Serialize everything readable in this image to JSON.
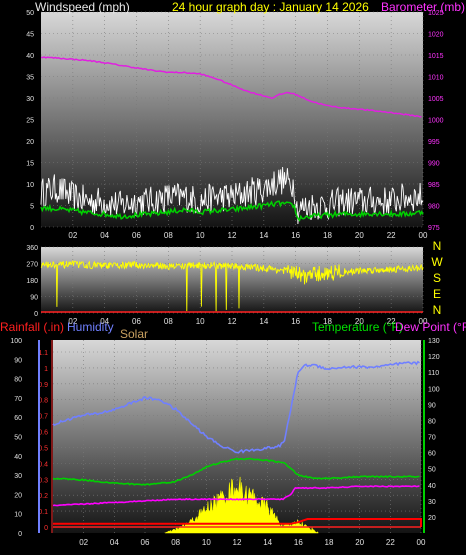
{
  "chart_data": [
    {
      "type": "line",
      "title": "24 hour graph day : January 14 2026",
      "left_axis_label": "Windspeed (mph)",
      "right_axis_label": "Barometer (mb)",
      "left_ylim": [
        0,
        50
      ],
      "left_ticks": [
        "0",
        "5",
        "10",
        "15",
        "20",
        "25",
        "30",
        "35",
        "40",
        "45",
        "50"
      ],
      "right_ylim": [
        975,
        1025
      ],
      "right_ticks": [
        "975",
        "980",
        "985",
        "990",
        "995",
        "1000",
        "1005",
        "1010",
        "1015",
        "1020",
        "1025"
      ],
      "x_ticks": [
        "02",
        "04",
        "06",
        "08",
        "10",
        "12",
        "14",
        "16",
        "18",
        "20",
        "22",
        "00"
      ],
      "x_range_hours": [
        0,
        24
      ],
      "series": [
        {
          "axis": "right",
          "color": "#e020e0",
          "x": [
            0,
            1,
            2,
            3,
            4,
            5,
            6,
            7,
            8,
            9,
            10,
            11,
            12,
            13,
            14,
            14.5,
            15,
            15.5,
            16,
            17,
            18,
            19,
            20,
            21,
            22,
            23,
            24
          ],
          "y": [
            1014.5,
            1014.3,
            1014.0,
            1013.7,
            1013.2,
            1012.6,
            1012.0,
            1011.4,
            1011.0,
            1010.9,
            1010.6,
            1009.5,
            1008.0,
            1006.5,
            1005.5,
            1005.0,
            1005.8,
            1006.3,
            1005.8,
            1004.2,
            1003.2,
            1002.7,
            1002.4,
            1002.0,
            1001.6,
            1001.1,
            1000.6
          ]
        },
        {
          "axis": "left",
          "color": "#ffffff",
          "style": "gust",
          "x": [
            0,
            1,
            2,
            3,
            4,
            5,
            6,
            7,
            8,
            9,
            10,
            11,
            12,
            13,
            14,
            15,
            15.9,
            16.1,
            17,
            18,
            19,
            20,
            21,
            22,
            23,
            24
          ],
          "y": [
            8,
            9,
            7,
            6,
            6,
            5,
            6,
            6,
            7,
            7,
            6,
            7,
            7,
            8,
            9,
            11,
            10,
            4,
            5,
            5,
            6,
            6,
            6,
            6,
            7,
            7
          ]
        },
        {
          "axis": "left",
          "color": "#00d000",
          "x": [
            0,
            1,
            2,
            3,
            4,
            5,
            6,
            7,
            8,
            9,
            10,
            11,
            12,
            13,
            14,
            15,
            15.9,
            16.1,
            17,
            18,
            19,
            20,
            21,
            22,
            23,
            24
          ],
          "y": [
            4.5,
            4.2,
            3.8,
            3.3,
            3.0,
            2.5,
            2.8,
            3.0,
            3.5,
            4.0,
            3.5,
            3.8,
            4.0,
            4.5,
            5.0,
            5.5,
            5.0,
            2.0,
            2.5,
            2.8,
            3.0,
            3.0,
            3.2,
            3.0,
            3.0,
            3.5
          ]
        }
      ]
    },
    {
      "type": "scatter",
      "left_ylim": [
        0,
        360
      ],
      "left_ticks": [
        "0",
        "90",
        "180",
        "270",
        "360"
      ],
      "right_labels": [
        "N",
        "W",
        "S",
        "E",
        "N"
      ],
      "x_ticks": [
        "02",
        "04",
        "06",
        "08",
        "10",
        "12",
        "14",
        "16",
        "18",
        "20",
        "22",
        "00"
      ],
      "series": [
        {
          "color": "#ffff00",
          "x": [
            0,
            2,
            4,
            6,
            8,
            10,
            12,
            14,
            15.5,
            16.5,
            18,
            20,
            22,
            24
          ],
          "y": [
            260,
            265,
            258,
            262,
            255,
            260,
            255,
            245,
            230,
            200,
            220,
            230,
            240,
            245
          ]
        }
      ]
    },
    {
      "type": "line",
      "left_axis_label": "Rainfall (.in)",
      "left_axis_label_2": "Humidity",
      "left_axis_label_3": "Solar",
      "right_axis_label": "Temperature (°F)",
      "right_axis_label_2": "Dew Point (°F)",
      "rain_ylim": [
        0,
        1.2
      ],
      "rain_ticks": [
        "0",
        "0.1",
        "0.2",
        "0.3",
        "0.4",
        "0.5",
        "0.6",
        "0.7",
        "0.8",
        "0.9",
        "1",
        "1.1"
      ],
      "humidity_ylim": [
        0,
        100
      ],
      "humidity_ticks": [
        "0",
        "10",
        "20",
        "30",
        "40",
        "50",
        "60",
        "70",
        "80",
        "90",
        "100"
      ],
      "temp_ylim": [
        10,
        130
      ],
      "temp_ticks": [
        "20",
        "30",
        "40",
        "50",
        "60",
        "70",
        "80",
        "90",
        "100",
        "110",
        "120",
        "130"
      ],
      "x_ticks": [
        "02",
        "04",
        "06",
        "08",
        "10",
        "12",
        "14",
        "16",
        "18",
        "20",
        "22",
        "00"
      ],
      "series": [
        {
          "name": "Humidity",
          "color": "#7080ff",
          "axis": "humidity",
          "x": [
            0,
            1,
            2,
            3,
            4,
            5,
            6,
            7,
            8,
            9,
            10,
            11,
            12,
            13,
            14,
            14.8,
            15.1,
            15.4,
            15.7,
            16,
            16.5,
            17,
            18,
            19,
            20,
            21,
            22,
            23,
            24
          ],
          "y": [
            56,
            59,
            61,
            62,
            64,
            67,
            70,
            69,
            64,
            57,
            50,
            45,
            42,
            43,
            44,
            45,
            48,
            60,
            72,
            84,
            87,
            87,
            85,
            86,
            86,
            86,
            87,
            88,
            88
          ]
        },
        {
          "name": "Temperature (°F)",
          "color": "#00d000",
          "axis": "temp",
          "x": [
            0,
            2,
            4,
            6,
            7,
            8,
            9,
            10,
            11,
            12,
            13,
            14,
            15,
            15.5,
            16,
            17,
            18,
            20,
            22,
            24
          ],
          "y": [
            44,
            43,
            41,
            40,
            41,
            42,
            46,
            51,
            54,
            56,
            56,
            55,
            54,
            50,
            46,
            44,
            44,
            45,
            45,
            45
          ]
        },
        {
          "name": "Dew Point (°F)",
          "color": "#ff00ff",
          "axis": "temp",
          "x": [
            0,
            2,
            4,
            6,
            8,
            10,
            12,
            14,
            15,
            15.5,
            15.8,
            16,
            18,
            20,
            22,
            24
          ],
          "y": [
            27,
            28,
            29,
            30,
            31,
            31,
            31,
            31,
            31,
            34,
            38,
            38,
            38,
            39,
            39,
            39
          ]
        },
        {
          "name": "Rainfall (.in)",
          "color": "#ff0000",
          "axis": "rain",
          "x": [
            0,
            15.5,
            16,
            16.3,
            16.6,
            24,
            24
          ],
          "y": [
            0.02,
            0.02,
            0.03,
            0.04,
            0.05,
            0.05,
            0
          ]
        },
        {
          "name": "Solar",
          "color": "#ffff00",
          "axis": "temp",
          "style": "fill",
          "x": [
            7.3,
            8,
            9,
            10,
            11,
            11.5,
            12,
            12.5,
            13,
            13.5,
            14,
            14.5,
            15,
            15.5,
            16,
            16.5,
            17,
            17.3
          ],
          "y": [
            10,
            12,
            17,
            25,
            32,
            36,
            40,
            34,
            33,
            29,
            26,
            20,
            14,
            15,
            17,
            14,
            12,
            10
          ]
        }
      ]
    }
  ]
}
